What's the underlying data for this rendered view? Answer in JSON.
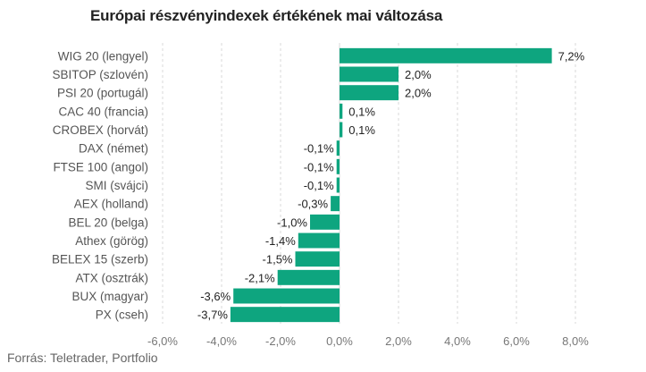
{
  "source": "Forrás: Teletrader, Portfolio",
  "colors": {
    "bar": "#0ea57f",
    "grid": "#d9d9d9"
  },
  "chart_data": {
    "type": "bar",
    "orientation": "horizontal",
    "title": "Európai részvényindexek értékének mai változása",
    "categories": [
      "WIG 20 (lengyel)",
      "SBITOP (szlovén)",
      "PSI 20 (portugál)",
      "CAC 40 (francia)",
      "CROBEX (horvát)",
      "DAX (német)",
      "FTSE 100 (angol)",
      "SMI (svájci)",
      "AEX (holland)",
      "BEL 20 (belga)",
      "Athex (görög)",
      "BELEX 15 (szerb)",
      "ATX (osztrák)",
      "BUX (magyar)",
      "PX (cseh)"
    ],
    "values": [
      7.2,
      2.0,
      2.0,
      0.1,
      0.1,
      -0.1,
      -0.1,
      -0.1,
      -0.3,
      -1.0,
      -1.4,
      -1.5,
      -2.1,
      -3.6,
      -3.7
    ],
    "value_labels": [
      "7,2%",
      "2,0%",
      "2,0%",
      "0,1%",
      "0,1%",
      "-0,1%",
      "-0,1%",
      "-0,1%",
      "-0,3%",
      "-1,0%",
      "-1,4%",
      "-1,5%",
      "-2,1%",
      "-3,6%",
      "-3,7%"
    ],
    "xlim": [
      -6,
      8
    ],
    "xticks": [
      -6,
      -4,
      -2,
      0,
      2,
      4,
      6,
      8
    ],
    "xtick_labels": [
      "-6,0%",
      "-4,0%",
      "-2,0%",
      "0,0%",
      "2,0%",
      "4,0%",
      "6,0%",
      "8,0%"
    ],
    "grid": "vertical",
    "legend": "none"
  }
}
